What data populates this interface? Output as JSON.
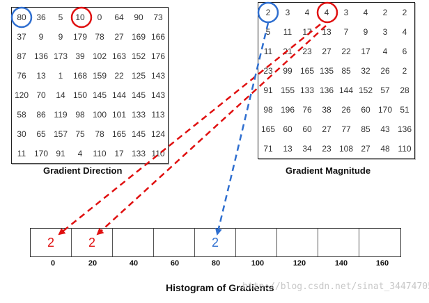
{
  "direction": {
    "title": "Gradient Direction",
    "rows": [
      [
        "80",
        "36",
        "5",
        "10",
        "0",
        "64",
        "90",
        "73"
      ],
      [
        "37",
        "9",
        "9",
        "179",
        "78",
        "27",
        "169",
        "166"
      ],
      [
        "87",
        "136",
        "173",
        "39",
        "102",
        "163",
        "152",
        "176"
      ],
      [
        "76",
        "13",
        "1",
        "168",
        "159",
        "22",
        "125",
        "143"
      ],
      [
        "120",
        "70",
        "14",
        "150",
        "145",
        "144",
        "145",
        "143"
      ],
      [
        "58",
        "86",
        "119",
        "98",
        "100",
        "101",
        "133",
        "113"
      ],
      [
        "30",
        "65",
        "157",
        "75",
        "78",
        "165",
        "145",
        "124"
      ],
      [
        "11",
        "170",
        "91",
        "4",
        "110",
        "17",
        "133",
        "110"
      ]
    ]
  },
  "magnitude": {
    "title": "Gradient Magnitude",
    "rows": [
      [
        "2",
        "3",
        "4",
        "4",
        "3",
        "4",
        "2",
        "2"
      ],
      [
        "5",
        "11",
        "17",
        "13",
        "7",
        "9",
        "3",
        "4"
      ],
      [
        "11",
        "21",
        "23",
        "27",
        "22",
        "17",
        "4",
        "6"
      ],
      [
        "23",
        "99",
        "165",
        "135",
        "85",
        "32",
        "26",
        "2"
      ],
      [
        "91",
        "155",
        "133",
        "136",
        "144",
        "152",
        "57",
        "28"
      ],
      [
        "98",
        "196",
        "76",
        "38",
        "26",
        "60",
        "170",
        "51"
      ],
      [
        "165",
        "60",
        "60",
        "27",
        "77",
        "85",
        "43",
        "136"
      ],
      [
        "71",
        "13",
        "34",
        "23",
        "108",
        "27",
        "48",
        "110"
      ]
    ]
  },
  "histogram": {
    "title": "Histogram of Gradients",
    "bins": [
      "0",
      "20",
      "40",
      "60",
      "80",
      "100",
      "120",
      "140",
      "160"
    ],
    "values": [
      "2",
      "2",
      "",
      "",
      "2",
      "",
      "",
      "",
      ""
    ]
  },
  "colors": {
    "red": "#e01010",
    "blue": "#2f6fd0"
  },
  "watermark": "http://blog.csdn.net/sinat_34474705"
}
